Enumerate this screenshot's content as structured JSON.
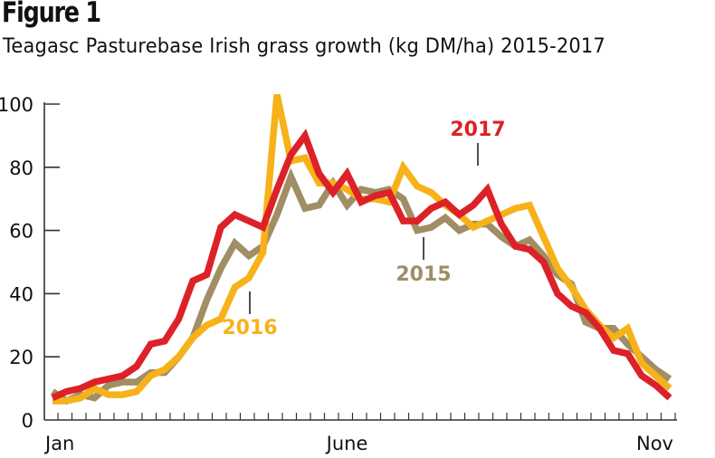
{
  "figure": {
    "title": "Figure 1",
    "subtitle": "Teagasc Pasturebase Irish grass growth (kg DM/ha) 2015-2017"
  },
  "chart_data": {
    "type": "line",
    "title": "Figure 1",
    "subtitle": "Teagasc Pasturebase Irish grass growth (kg DM/ha) 2015-2017",
    "xlabel": "",
    "ylabel": "kg DM/ha",
    "ylim": [
      0,
      100
    ],
    "yticks": [
      0,
      20,
      40,
      60,
      80,
      100
    ],
    "ytick_labels": [
      "0",
      "20",
      "40",
      "60",
      "80",
      "100"
    ],
    "x_unit": "week",
    "x": [
      1,
      2,
      3,
      4,
      5,
      6,
      7,
      8,
      9,
      10,
      11,
      12,
      13,
      14,
      15,
      16,
      17,
      18,
      19,
      20,
      21,
      22,
      23,
      24,
      25,
      26,
      27,
      28,
      29,
      30,
      31,
      32,
      33,
      34,
      35,
      36,
      37,
      38,
      39,
      40,
      41,
      42,
      43,
      44,
      45
    ],
    "xtick_labels": [
      {
        "label": "Jan",
        "x": 1
      },
      {
        "label": "June",
        "x": 22
      },
      {
        "label": "Nov",
        "x": 45
      }
    ],
    "grid": false,
    "legend": "inline-labels",
    "series": [
      {
        "name": "2015",
        "color": "#a08e64",
        "label_at": 25,
        "values": [
          9,
          6,
          8,
          7,
          11,
          12,
          12,
          15,
          15,
          20,
          26,
          38,
          48,
          56,
          52,
          55,
          65,
          77,
          67,
          68,
          75,
          68,
          73,
          72,
          73,
          70,
          60,
          61,
          64,
          60,
          62,
          62,
          58,
          55,
          57,
          52,
          46,
          43,
          31,
          29,
          29,
          24,
          20,
          16,
          13
        ]
      },
      {
        "name": "2016",
        "color": "#f7b21a",
        "label_at": 14,
        "values": [
          6,
          6,
          7,
          10,
          8,
          8,
          9,
          14,
          16,
          20,
          26,
          30,
          32,
          42,
          45,
          53,
          103,
          82,
          83,
          75,
          75,
          73,
          70,
          70,
          69,
          80,
          74,
          72,
          68,
          65,
          61,
          63,
          65,
          67,
          68,
          58,
          48,
          42,
          35,
          30,
          26,
          29,
          18,
          14,
          10
        ]
      },
      {
        "name": "2017",
        "color": "#dc2228",
        "label_at": 31,
        "values": [
          7,
          9,
          10,
          12,
          13,
          14,
          17,
          24,
          25,
          32,
          44,
          46,
          61,
          65,
          63,
          61,
          73,
          84,
          90,
          78,
          72,
          78,
          69,
          71,
          72,
          63,
          63,
          67,
          69,
          65,
          68,
          73,
          62,
          55,
          54,
          50,
          40,
          36,
          34,
          29,
          22,
          21,
          14,
          11,
          7
        ]
      }
    ]
  }
}
